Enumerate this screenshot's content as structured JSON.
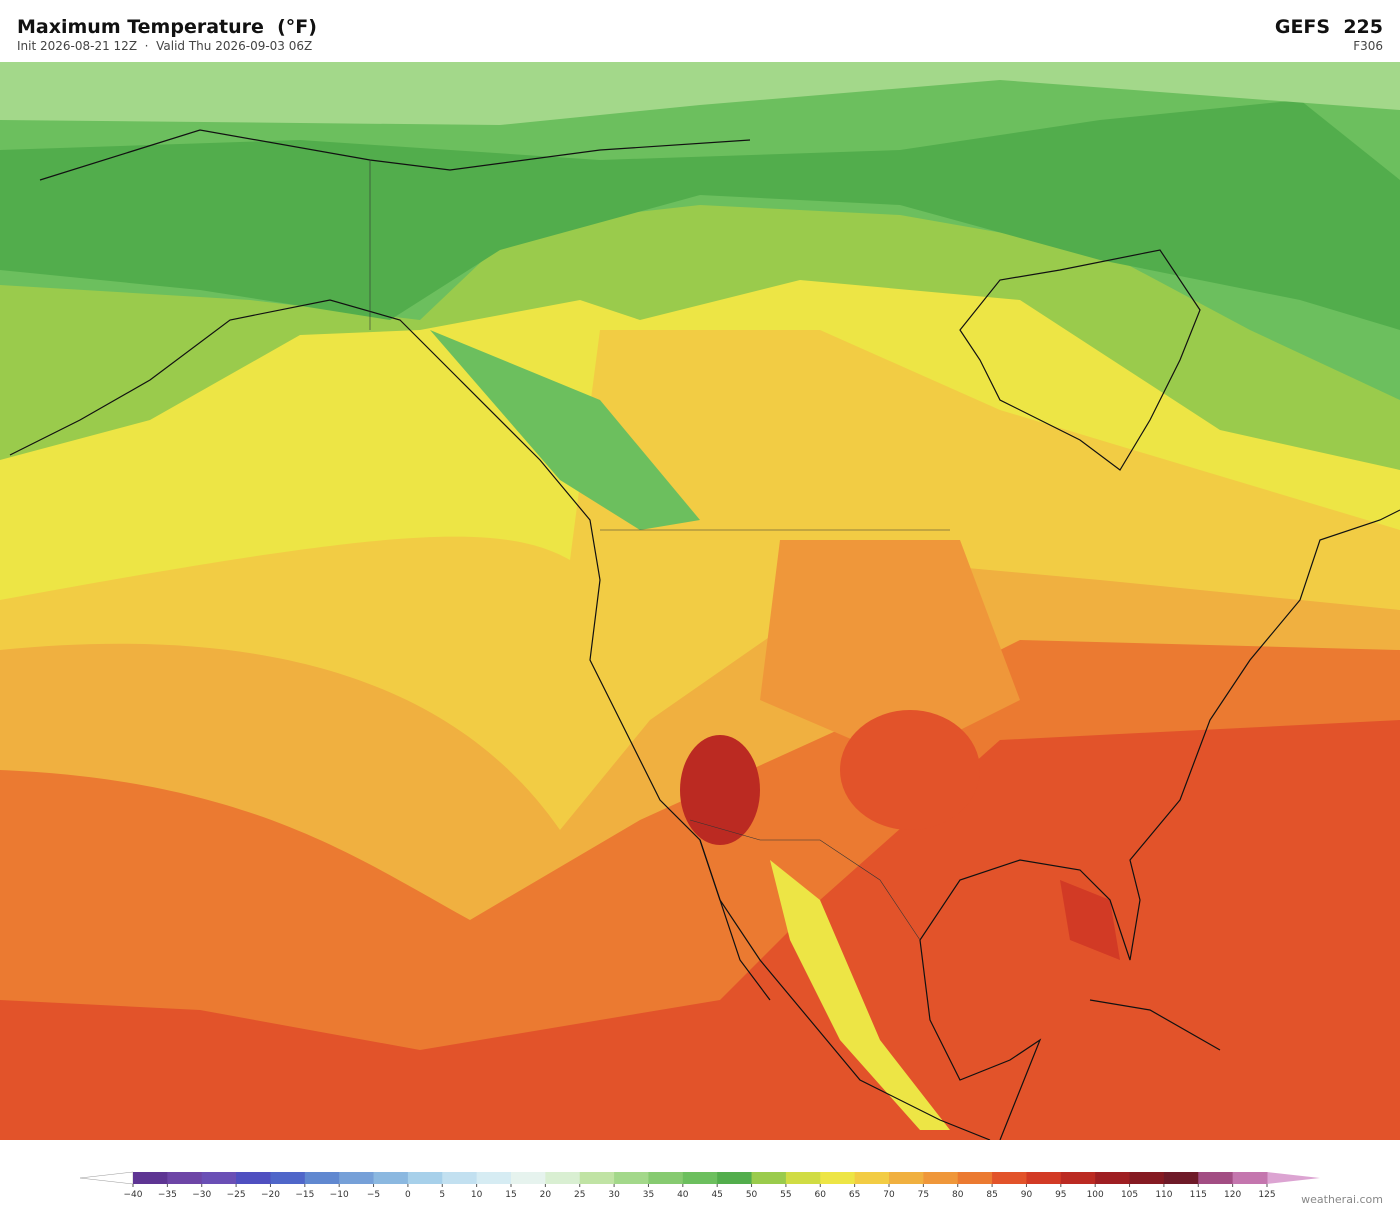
{
  "header": {
    "title": "Maximum Temperature  (°F)",
    "subtitle": "Init 2026-08-21 12Z  ·  Valid Thu 2026-09-03 06Z",
    "model": "GEFS  225",
    "forecast_hour": "F306"
  },
  "colorbar": {
    "ticks": [
      {
        "value": -40,
        "label": "−40"
      },
      {
        "value": -35,
        "label": "−35"
      },
      {
        "value": -30,
        "label": "−30"
      },
      {
        "value": -25,
        "label": "−25"
      },
      {
        "value": -20,
        "label": "−20"
      },
      {
        "value": -15,
        "label": "−15"
      },
      {
        "value": -10,
        "label": "−10"
      },
      {
        "value": -5,
        "label": "−5"
      },
      0,
      5,
      10,
      15,
      20,
      25,
      30,
      35,
      40,
      45,
      50,
      55,
      60,
      65,
      70,
      75,
      80,
      85,
      90,
      95,
      100,
      105,
      110,
      115,
      120,
      125
    ],
    "colors": [
      "#5e3593",
      "#6d45a6",
      "#6a4fb5",
      "#4f4fc0",
      "#4f66c9",
      "#6088d0",
      "#76a0d8",
      "#8bb8e0",
      "#a7d0ea",
      "#c2e0f0",
      "#d6ecf3",
      "#e6f3ee",
      "#d9efd2",
      "#c0e3a4",
      "#a3d88a",
      "#86ca70",
      "#6cbf5e",
      "#52ad4c",
      "#9acb4c",
      "#d0dc44",
      "#ede545",
      "#f2cc44",
      "#f0b040",
      "#ef973a",
      "#eb7a31",
      "#e2532a",
      "#d23a25",
      "#bb2a22",
      "#9e1e22",
      "#851a22",
      "#6e1a28",
      "#a24d83",
      "#c476ae"
    ],
    "under_color": "#ffffff",
    "over_color": "#dca4d2"
  },
  "footer": {
    "credit": "weatherai.com"
  }
}
